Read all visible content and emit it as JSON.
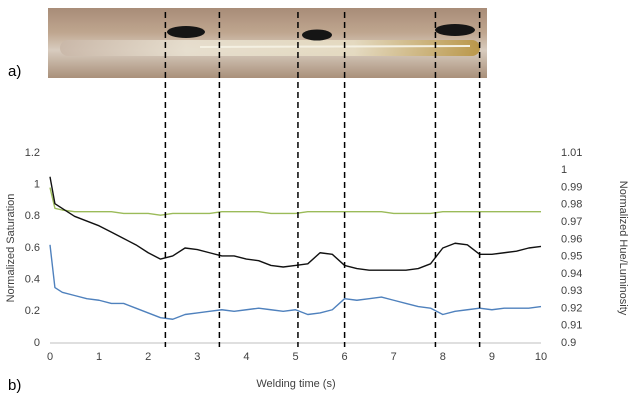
{
  "panel_labels": [
    "a)",
    "b)"
  ],
  "chart_data": {
    "type": "line",
    "xlabel": "Welding time (s)",
    "ylabel": "Normalized Saturation",
    "y2label": "Normalized Hue/Luminosity",
    "x": [
      0,
      0.1,
      0.25,
      0.5,
      0.75,
      1,
      1.25,
      1.5,
      1.75,
      2,
      2.25,
      2.5,
      2.75,
      3,
      3.25,
      3.5,
      3.75,
      4,
      4.25,
      4.5,
      4.75,
      5,
      5.25,
      5.5,
      5.75,
      6,
      6.25,
      6.5,
      6.75,
      7,
      7.25,
      7.5,
      7.75,
      8,
      8.25,
      8.5,
      8.75,
      9,
      9.25,
      9.5,
      9.75,
      10
    ],
    "series": [
      {
        "color": "#9bbb59",
        "axis": "y2",
        "values": [
          0.99,
          0.978,
          0.977,
          0.976,
          0.976,
          0.976,
          0.976,
          0.975,
          0.975,
          0.975,
          0.974,
          0.975,
          0.975,
          0.975,
          0.975,
          0.976,
          0.976,
          0.976,
          0.976,
          0.975,
          0.975,
          0.975,
          0.976,
          0.976,
          0.976,
          0.976,
          0.976,
          0.976,
          0.976,
          0.975,
          0.975,
          0.975,
          0.975,
          0.976,
          0.976,
          0.976,
          0.976,
          0.976,
          0.976,
          0.976,
          0.976,
          0.976
        ]
      },
      {
        "color": "#111111",
        "values": [
          1.05,
          0.88,
          0.85,
          0.8,
          0.77,
          0.74,
          0.7,
          0.66,
          0.62,
          0.57,
          0.53,
          0.55,
          0.6,
          0.59,
          0.57,
          0.55,
          0.55,
          0.53,
          0.52,
          0.49,
          0.48,
          0.49,
          0.5,
          0.57,
          0.56,
          0.49,
          0.47,
          0.46,
          0.46,
          0.46,
          0.46,
          0.47,
          0.5,
          0.6,
          0.63,
          0.62,
          0.56,
          0.56,
          0.57,
          0.58,
          0.6,
          0.61
        ]
      },
      {
        "color": "#4f81bd",
        "values": [
          0.62,
          0.35,
          0.32,
          0.3,
          0.28,
          0.27,
          0.25,
          0.25,
          0.22,
          0.19,
          0.16,
          0.15,
          0.18,
          0.19,
          0.2,
          0.21,
          0.2,
          0.21,
          0.22,
          0.21,
          0.2,
          0.21,
          0.18,
          0.19,
          0.21,
          0.28,
          0.27,
          0.28,
          0.29,
          0.27,
          0.25,
          0.23,
          0.22,
          0.18,
          0.2,
          0.21,
          0.22,
          0.21,
          0.22,
          0.22,
          0.22,
          0.23
        ]
      }
    ],
    "vlines": [
      2.35,
      3.45,
      5.05,
      6.0,
      7.85,
      8.75
    ],
    "xlim": [
      0,
      10
    ],
    "xticks": [
      0,
      1,
      2,
      3,
      4,
      5,
      6,
      7,
      8,
      9,
      10
    ],
    "ylim": [
      0,
      1.2
    ],
    "yticks": [
      0,
      0.2,
      0.4,
      0.6,
      0.8,
      1,
      1.2
    ],
    "y2lim": [
      0.9,
      1.01
    ],
    "y2ticks": [
      0.9,
      0.91,
      0.92,
      0.93,
      0.94,
      0.95,
      0.96,
      0.97,
      0.98,
      0.99,
      1,
      1.01
    ],
    "grid": false
  }
}
